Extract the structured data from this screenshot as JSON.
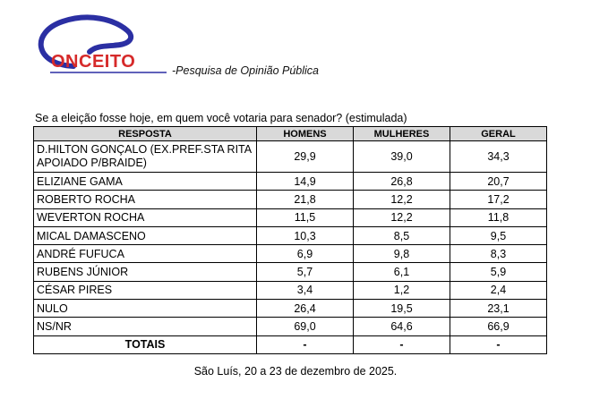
{
  "brand": {
    "logo_text": "ONCEITO",
    "tagline": "-Pesquisa de Opinião Pública"
  },
  "question": "Se a eleição fosse hoje, em quem você votaria para senador? (estimulada)",
  "table": {
    "headers": [
      "RESPOSTA",
      "HOMENS",
      "MULHERES",
      "GERAL"
    ],
    "rows": [
      {
        "label": "D.HILTON GONÇALO (EX.PREF.STA RITA APOIADO P/BRAIDE)",
        "homens": "29,9",
        "mulheres": "39,0",
        "geral": "34,3"
      },
      {
        "label": "ELIZIANE GAMA",
        "homens": "14,9",
        "mulheres": "26,8",
        "geral": "20,7"
      },
      {
        "label": "ROBERTO ROCHA",
        "homens": "21,8",
        "mulheres": "12,2",
        "geral": "17,2"
      },
      {
        "label": "WEVERTON ROCHA",
        "homens": "11,5",
        "mulheres": "12,2",
        "geral": "11,8"
      },
      {
        "label": "MICAL DAMASCENO",
        "homens": "10,3",
        "mulheres": "8,5",
        "geral": "9,5"
      },
      {
        "label": "ANDRÉ FUFUCA",
        "homens": "6,9",
        "mulheres": "9,8",
        "geral": "8,3"
      },
      {
        "label": "RUBENS JÚNIOR",
        "homens": "5,7",
        "mulheres": "6,1",
        "geral": "5,9"
      },
      {
        "label": "CÉSAR PIRES",
        "homens": "3,4",
        "mulheres": "1,2",
        "geral": "2,4"
      },
      {
        "label": "NULO",
        "homens": "26,4",
        "mulheres": "19,5",
        "geral": "23,1"
      },
      {
        "label": "NS/NR",
        "homens": "69,0",
        "mulheres": "64,6",
        "geral": "66,9"
      }
    ],
    "totals": {
      "label": "TOTAIS",
      "homens": "-",
      "mulheres": "-",
      "geral": "-"
    }
  },
  "footer": "São Luís, 20 a 23 de dezembro de 2025.",
  "colors": {
    "logo_blue": "#2b2fa3",
    "logo_red": "#d62a2a",
    "header_bg": "#d9d9d9"
  }
}
